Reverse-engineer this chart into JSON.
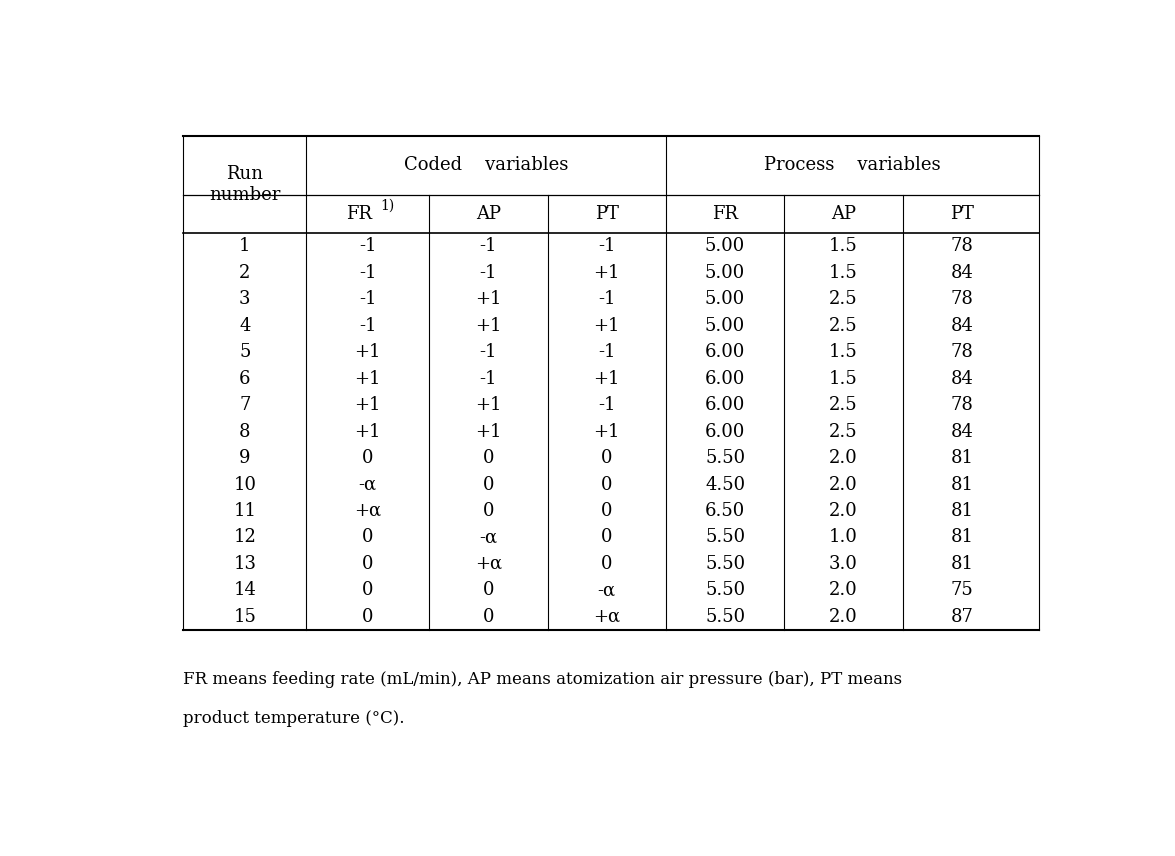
{
  "coded_vars_header": "Coded    variables",
  "process_vars_header": "Process    variables",
  "run_number_header": "Run\nnumber",
  "subheaders": [
    "FR",
    "AP",
    "PT",
    "FR",
    "AP",
    "PT"
  ],
  "fr_superscript": "1)",
  "data": [
    [
      1,
      "-1",
      "-1",
      "-1",
      "5.00",
      "1.5",
      "78"
    ],
    [
      2,
      "-1",
      "-1",
      "+1",
      "5.00",
      "1.5",
      "84"
    ],
    [
      3,
      "-1",
      "+1",
      "-1",
      "5.00",
      "2.5",
      "78"
    ],
    [
      4,
      "-1",
      "+1",
      "+1",
      "5.00",
      "2.5",
      "84"
    ],
    [
      5,
      "+1",
      "-1",
      "-1",
      "6.00",
      "1.5",
      "78"
    ],
    [
      6,
      "+1",
      "-1",
      "+1",
      "6.00",
      "1.5",
      "84"
    ],
    [
      7,
      "+1",
      "+1",
      "-1",
      "6.00",
      "2.5",
      "78"
    ],
    [
      8,
      "+1",
      "+1",
      "+1",
      "6.00",
      "2.5",
      "84"
    ],
    [
      9,
      "0",
      "0",
      "0",
      "5.50",
      "2.0",
      "81"
    ],
    [
      10,
      "-α",
      "0",
      "0",
      "4.50",
      "2.0",
      "81"
    ],
    [
      11,
      "+α",
      "0",
      "0",
      "6.50",
      "2.0",
      "81"
    ],
    [
      12,
      "0",
      "-α",
      "0",
      "5.50",
      "1.0",
      "81"
    ],
    [
      13,
      "0",
      "+α",
      "0",
      "5.50",
      "3.0",
      "81"
    ],
    [
      14,
      "0",
      "0",
      "-α",
      "5.50",
      "2.0",
      "75"
    ],
    [
      15,
      "0",
      "0",
      "+α",
      "5.50",
      "2.0",
      "87"
    ]
  ],
  "footnote_line1": "FR means feeding rate (mL/min), AP means atomization air pressure (bar), PT means",
  "footnote_line2": "product temperature (°C).",
  "background_color": "#ffffff",
  "text_color": "#000000",
  "font_size": 13,
  "header_font_size": 13
}
